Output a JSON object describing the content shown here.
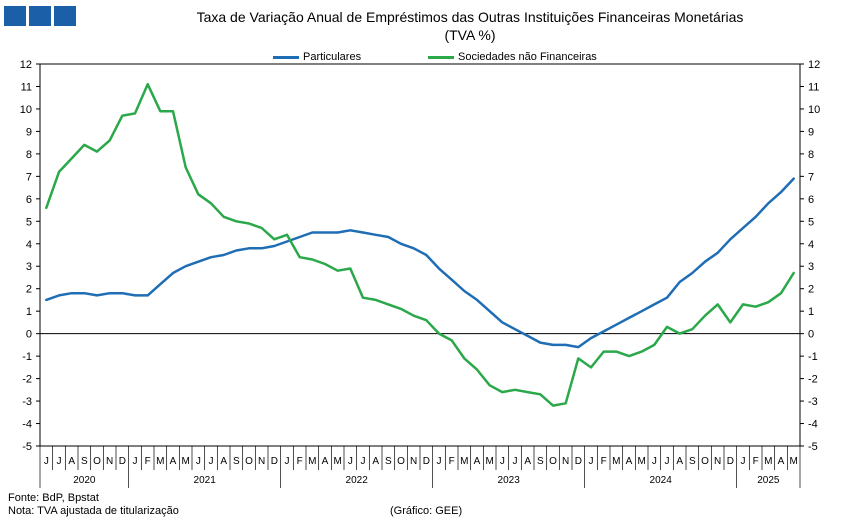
{
  "header": {
    "logo_colors": [
      "#1a5fa8",
      "#1a5fa8",
      "#1a5fa8"
    ],
    "title_line1": "Taxa de Variação Anual de Empréstimos das Outras Instituições Financeiras Monetárias",
    "title_line2": "(TVA %)"
  },
  "footer": {
    "source": "Fonte: BdP, Bpstat",
    "note": "Nota: TVA ajustada de titularização",
    "credit": "(Gráfico: GEE)"
  },
  "chart_data": {
    "type": "line",
    "ylim": [
      -5,
      12
    ],
    "yticks": [
      12,
      11,
      10,
      9,
      8,
      7,
      6,
      5,
      4,
      3,
      2,
      1,
      0,
      -1,
      -2,
      -3,
      -4,
      -5
    ],
    "grid": false,
    "legend_position": "top",
    "x": [
      "J",
      "J",
      "A",
      "S",
      "O",
      "N",
      "D",
      "J",
      "F",
      "M",
      "A",
      "M",
      "J",
      "J",
      "A",
      "S",
      "O",
      "N",
      "D",
      "J",
      "F",
      "M",
      "A",
      "M",
      "J",
      "J",
      "A",
      "S",
      "O",
      "N",
      "D",
      "J",
      "F",
      "M",
      "A",
      "M",
      "J",
      "J",
      "A",
      "S",
      "O",
      "N",
      "D",
      "J",
      "F",
      "M",
      "A",
      "M",
      "J",
      "J",
      "A",
      "S",
      "O",
      "N",
      "D",
      "J",
      "F",
      "M",
      "A",
      "M"
    ],
    "year_labels": [
      {
        "label": "2020",
        "start": 0,
        "end": 6
      },
      {
        "label": "2021",
        "start": 7,
        "end": 18
      },
      {
        "label": "2022",
        "start": 19,
        "end": 30
      },
      {
        "label": "2023",
        "start": 31,
        "end": 42
      },
      {
        "label": "2024",
        "start": 43,
        "end": 54
      },
      {
        "label": "2025",
        "start": 55,
        "end": 59
      }
    ],
    "series": [
      {
        "name": "Particulares",
        "color": "#1f6db5",
        "values": [
          1.5,
          1.7,
          1.8,
          1.8,
          1.7,
          1.8,
          1.8,
          1.7,
          1.7,
          2.2,
          2.7,
          3.0,
          3.2,
          3.4,
          3.5,
          3.7,
          3.8,
          3.8,
          3.9,
          4.1,
          4.3,
          4.5,
          4.5,
          4.5,
          4.6,
          4.5,
          4.4,
          4.3,
          4.0,
          3.8,
          3.5,
          2.9,
          2.4,
          1.9,
          1.5,
          1.0,
          0.5,
          0.2,
          -0.1,
          -0.4,
          -0.5,
          -0.5,
          -0.6,
          -0.2,
          0.1,
          0.4,
          0.7,
          1.0,
          1.3,
          1.6,
          2.3,
          2.7,
          3.2,
          3.6,
          4.2,
          4.7,
          5.2,
          5.8,
          6.3,
          6.9
        ]
      },
      {
        "name": "Sociedades não Financeiras",
        "color": "#2aa84a",
        "values": [
          5.6,
          7.2,
          7.8,
          8.4,
          8.1,
          8.6,
          9.7,
          9.8,
          11.1,
          9.9,
          9.9,
          7.4,
          6.2,
          5.8,
          5.2,
          5.0,
          4.9,
          4.7,
          4.2,
          4.4,
          3.4,
          3.3,
          3.1,
          2.8,
          2.9,
          1.6,
          1.5,
          1.3,
          1.1,
          0.8,
          0.6,
          0.0,
          -0.3,
          -1.1,
          -1.6,
          -2.3,
          -2.6,
          -2.5,
          -2.6,
          -2.7,
          -3.2,
          -3.1,
          -1.1,
          -1.5,
          -0.8,
          -0.8,
          -1.0,
          -0.8,
          -0.5,
          0.3,
          0.0,
          0.2,
          0.8,
          1.3,
          0.5,
          1.3,
          1.2,
          1.4,
          1.8,
          2.7
        ]
      }
    ]
  }
}
